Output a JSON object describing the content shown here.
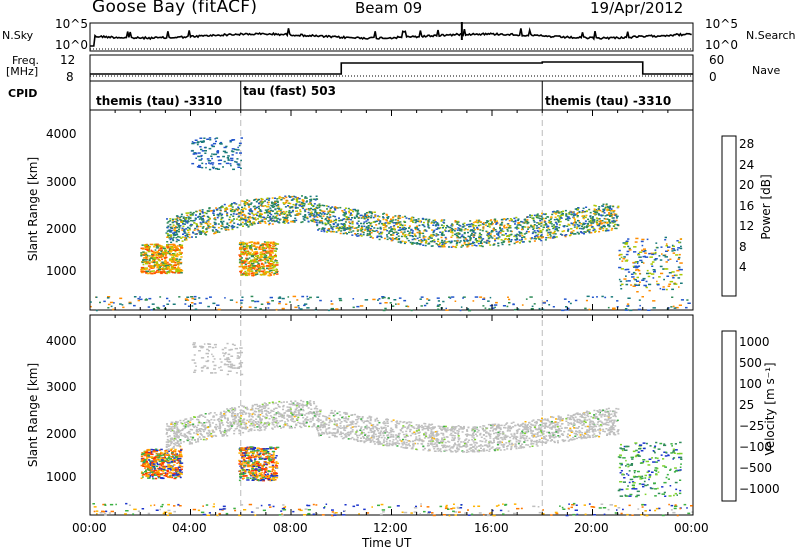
{
  "header": {
    "station": "Goose Bay (fitACF)",
    "beam": "Beam 09",
    "date": "19/Apr/2012"
  },
  "status_panel": {
    "nsky_label": "N.Sky",
    "nsky_ticks": [
      "10^5",
      "10^0"
    ],
    "nsearch_label": "N.Search",
    "nsearch_ticks": [
      "10^5",
      "10^0"
    ],
    "freq_label_line1": "Freq.",
    "freq_label_line2": "[MHz]",
    "freq_ticks": [
      "12",
      "8"
    ],
    "nave_label": "Nave",
    "nave_ticks": [
      "60",
      "0"
    ],
    "cpid_label": "CPID"
  },
  "cpid_segments": [
    {
      "label": "themis (tau) -3310",
      "start_hour": 0
    },
    {
      "label": "tau (fast) 503",
      "start_hour": 6
    },
    {
      "label": "themis (tau) -3310",
      "start_hour": 18
    }
  ],
  "axes": {
    "x_label": "Time UT",
    "x_ticks": [
      "00:00",
      "04:00",
      "08:00",
      "12:00",
      "16:00",
      "20:00",
      "00:00"
    ],
    "y_label": "Slant Range [km]",
    "y_ticks": [
      "4000",
      "3000",
      "2000",
      "1000"
    ]
  },
  "power_scale": {
    "title": "Power [dB]",
    "labels": [
      "28",
      "24",
      "20",
      "16",
      "12",
      "8",
      "4"
    ],
    "colors": [
      "#ff0000",
      "#ff4d00",
      "#ff8c00",
      "#ffb300",
      "#a8c800",
      "#2e8b57",
      "#1a7a7a",
      "#2255cc",
      "#0000ff"
    ]
  },
  "velocity_scale": {
    "title": "Velocity [m s⁻¹]",
    "labels": [
      "1000",
      "500",
      "100",
      "25",
      "−25",
      "−100",
      "−500",
      "−1000"
    ],
    "colors": [
      "#1a33cc",
      "#2f8a5a",
      "#3cb043",
      "#7fd32d",
      "#bfbfbf",
      "#ffb400",
      "#ff7a00",
      "#ff3300",
      "#ff0000"
    ]
  },
  "chart_data": {
    "type": "heatmap",
    "x_range_hours": [
      0,
      24
    ],
    "y_range_km": [
      180,
      4600
    ],
    "power_regions": [
      {
        "t0": 2.0,
        "t1": 3.6,
        "r0": 1000,
        "r1": 1650,
        "level": "high"
      },
      {
        "t0": 5.9,
        "t1": 7.4,
        "r0": 950,
        "r1": 1700,
        "level": "high"
      },
      {
        "t0": 3.0,
        "t1": 10.0,
        "r0": 1600,
        "r1": 2600,
        "level": "mid"
      },
      {
        "t0": 10.0,
        "t1": 21.0,
        "r0": 1800,
        "r1": 2400,
        "level": "mid"
      },
      {
        "t0": 4.0,
        "t1": 6.0,
        "r0": 3400,
        "r1": 4000,
        "level": "low"
      },
      {
        "t0": 21.0,
        "t1": 23.5,
        "r0": 600,
        "r1": 1800,
        "level": "mixed"
      }
    ],
    "velocity_regions": [
      {
        "t0": 2.0,
        "t1": 3.6,
        "r0": 1000,
        "r1": 1650,
        "value": "-500"
      },
      {
        "t0": 5.9,
        "t1": 7.4,
        "r0": 950,
        "r1": 1700,
        "value": "-500"
      },
      {
        "t0": 3.0,
        "t1": 21.0,
        "r0": 1700,
        "r1": 2600,
        "value": "0"
      },
      {
        "t0": 21.0,
        "t1": 23.5,
        "r0": 600,
        "r1": 1800,
        "value": "100"
      }
    ],
    "title": "Goose Bay (fitACF)",
    "xlabel": "Time UT",
    "ylabel": "Slant Range [km]"
  }
}
